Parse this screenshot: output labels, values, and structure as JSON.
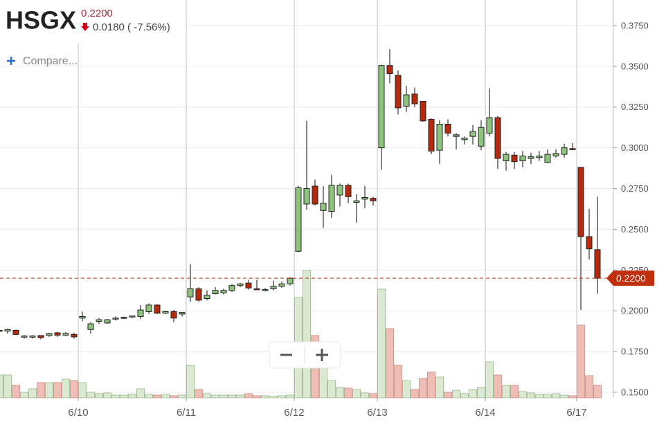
{
  "chart_data": {
    "type": "candlestick",
    "title": "HSGX",
    "last_price": {
      "value": 0.22,
      "label": "0.2200"
    },
    "change": "0.0180 ( -7.56%)",
    "compare": "Compare...",
    "categories": [
      null,
      null,
      null,
      null,
      null,
      null,
      null,
      null,
      null,
      null,
      "6/10",
      null,
      null,
      null,
      null,
      null,
      null,
      null,
      null,
      null,
      null,
      null,
      null,
      "6/11",
      null,
      null,
      null,
      null,
      null,
      null,
      null,
      null,
      null,
      null,
      null,
      null,
      "6/12",
      null,
      null,
      null,
      null,
      null,
      null,
      null,
      null,
      null,
      "6/13",
      null,
      null,
      null,
      null,
      null,
      null,
      null,
      null,
      null,
      null,
      null,
      null,
      "6/14",
      null,
      null,
      null,
      null,
      null,
      null,
      null,
      null,
      null,
      null,
      "6/17",
      null,
      null
    ],
    "open": [
      0.1875,
      0.1875,
      0.188,
      0.1838,
      0.1838,
      0.1848,
      0.1848,
      0.1865,
      0.185,
      0.1855,
      0.1955,
      0.1885,
      0.1935,
      0.1925,
      0.195,
      0.1955,
      0.1962,
      0.1965,
      0.1995,
      0.2035,
      0.1985,
      0.1995,
      0.198,
      0.2085,
      0.2135,
      0.2075,
      0.2105,
      0.211,
      0.2125,
      0.2155,
      0.217,
      0.2135,
      0.2125,
      0.2135,
      0.215,
      0.2165,
      0.2365,
      0.2655,
      0.2765,
      0.2615,
      0.261,
      0.271,
      0.277,
      0.2665,
      0.2685,
      0.269,
      0.3,
      0.3505,
      0.3445,
      0.3255,
      0.333,
      0.3285,
      0.3175,
      0.2985,
      0.3145,
      0.307,
      0.305,
      0.307,
      0.301,
      0.309,
      0.3185,
      0.292,
      0.2955,
      0.292,
      0.2935,
      0.294,
      0.291,
      0.295,
      0.296,
      0.2995,
      0.288,
      0.2455,
      0.2375
    ],
    "high": [
      0.189,
      0.189,
      0.1885,
      0.185,
      0.185,
      0.185,
      0.1865,
      0.187,
      0.187,
      0.1865,
      0.1995,
      0.193,
      0.1955,
      0.195,
      0.1965,
      0.1965,
      0.197,
      0.2035,
      0.2045,
      0.204,
      0.2,
      0.2005,
      0.199,
      0.2285,
      0.2145,
      0.2125,
      0.2145,
      0.2135,
      0.2165,
      0.217,
      0.219,
      0.219,
      0.214,
      0.2185,
      0.218,
      0.2205,
      0.2765,
      0.3165,
      0.2805,
      0.2765,
      0.2835,
      0.278,
      0.278,
      0.2715,
      0.2765,
      0.27,
      0.351,
      0.3605,
      0.3475,
      0.338,
      0.337,
      0.3285,
      0.318,
      0.317,
      0.3175,
      0.309,
      0.307,
      0.314,
      0.317,
      0.3365,
      0.3195,
      0.2975,
      0.2975,
      0.298,
      0.297,
      0.298,
      0.299,
      0.299,
      0.3025,
      0.303,
      0.288,
      0.2625,
      0.27
    ],
    "low": [
      0.186,
      0.186,
      0.185,
      0.183,
      0.183,
      0.1825,
      0.184,
      0.184,
      0.1845,
      0.183,
      0.1935,
      0.186,
      0.192,
      0.192,
      0.194,
      0.195,
      0.1955,
      0.195,
      0.198,
      0.198,
      0.198,
      0.193,
      0.1965,
      0.2055,
      0.2055,
      0.2065,
      0.21,
      0.21,
      0.2115,
      0.2145,
      0.213,
      0.213,
      0.212,
      0.2125,
      0.214,
      0.2155,
      0.236,
      0.262,
      0.2645,
      0.251,
      0.257,
      0.264,
      0.266,
      0.254,
      0.263,
      0.2645,
      0.2865,
      0.3395,
      0.3205,
      0.322,
      0.325,
      0.316,
      0.296,
      0.29,
      0.307,
      0.299,
      0.302,
      0.302,
      0.2985,
      0.307,
      0.287,
      0.286,
      0.287,
      0.288,
      0.29,
      0.292,
      0.2905,
      0.294,
      0.294,
      0.2985,
      0.2005,
      0.2315,
      0.2105
    ],
    "close": [
      0.188,
      0.1885,
      0.1855,
      0.1845,
      0.1845,
      0.1835,
      0.186,
      0.185,
      0.186,
      0.184,
      0.1965,
      0.192,
      0.1945,
      0.1945,
      0.1955,
      0.196,
      0.1968,
      0.2005,
      0.2035,
      0.1985,
      0.1995,
      0.1955,
      0.199,
      0.2135,
      0.2065,
      0.2095,
      0.2125,
      0.2125,
      0.2155,
      0.2165,
      0.214,
      0.213,
      0.213,
      0.215,
      0.2165,
      0.22,
      0.2755,
      0.275,
      0.2655,
      0.266,
      0.277,
      0.277,
      0.27,
      0.2675,
      0.2695,
      0.2675,
      0.3505,
      0.3455,
      0.3245,
      0.3325,
      0.327,
      0.3165,
      0.298,
      0.3145,
      0.309,
      0.308,
      0.306,
      0.31,
      0.3125,
      0.3185,
      0.2935,
      0.296,
      0.2915,
      0.295,
      0.2945,
      0.295,
      0.296,
      0.2965,
      0.3,
      0.299,
      0.2455,
      0.238,
      0.22
    ],
    "volume": [
      33000,
      33000,
      18000,
      8000,
      13000,
      22000,
      22000,
      22000,
      27000,
      25000,
      22000,
      8000,
      6000,
      7000,
      4000,
      4000,
      5000,
      13000,
      5000,
      4000,
      5000,
      3000,
      4000,
      47000,
      12000,
      6000,
      4000,
      4000,
      4000,
      4000,
      6000,
      3000,
      3000,
      2000,
      3000,
      4000,
      145000,
      184000,
      90000,
      48000,
      25000,
      15000,
      14000,
      12000,
      7000,
      6000,
      157000,
      100000,
      47000,
      25000,
      12000,
      28000,
      37000,
      30000,
      8000,
      11000,
      6000,
      12000,
      15000,
      52000,
      33000,
      18000,
      18000,
      9000,
      7000,
      5000,
      5000,
      6000,
      4000,
      3000,
      105000,
      32000,
      18000
    ],
    "ylim": [
      0.1466,
      0.3907
    ],
    "yticks": [
      {
        "value": 0.15,
        "label": "0.1500"
      },
      {
        "value": 0.175,
        "label": "0.1750"
      },
      {
        "value": 0.2,
        "label": "0.2000"
      },
      {
        "value": 0.225,
        "label": "0.2250"
      },
      {
        "value": 0.25,
        "label": "0.2500"
      },
      {
        "value": 0.275,
        "label": "0.2750"
      },
      {
        "value": 0.3,
        "label": "0.3000"
      },
      {
        "value": 0.325,
        "label": "0.3250"
      },
      {
        "value": 0.35,
        "label": "0.3500"
      },
      {
        "value": 0.375,
        "label": "0.3750"
      }
    ],
    "grid": true,
    "up_color": "#8fc47f",
    "down_color": "#b52a0c",
    "volume_up_color": "#dbe9d3",
    "volume_down_color": "#eebdb5",
    "price_tag_color": "#c0300f"
  }
}
